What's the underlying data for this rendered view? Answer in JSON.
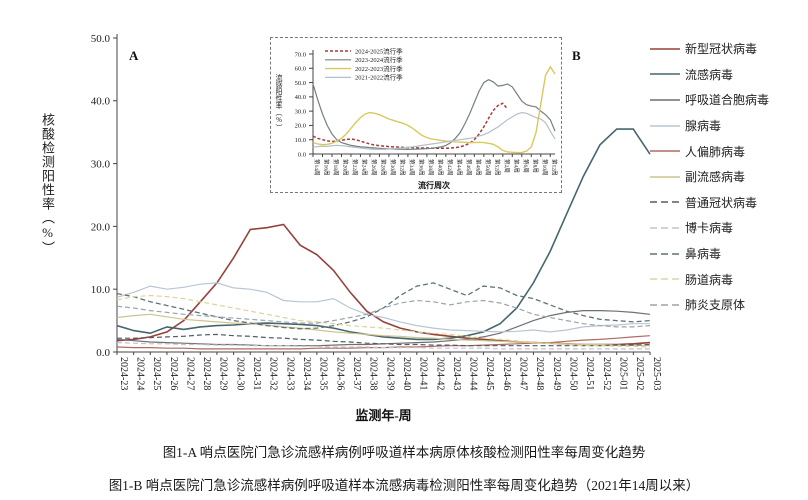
{
  "page": {
    "background": "#ffffff"
  },
  "panel_labels": {
    "a": "A",
    "b": "B"
  },
  "captions": {
    "line1": "图1-A  哨点医院门急诊流感样病例呼吸道样本病原体核酸检测阳性率每周变化趋势",
    "line2": "图1-B 哨点医院门急诊流感样病例呼吸道样本流感病毒检测阳性率每周变化趋势（2021年14周以来）"
  },
  "chart_data": [
    {
      "id": "main",
      "type": "line",
      "panel": "A",
      "xlabel": "监测年-周",
      "ylabel": "核酸检测阳性率（%）",
      "ylim": [
        0,
        50
      ],
      "yticks": [
        0,
        10,
        20,
        30,
        40,
        50
      ],
      "grid": false,
      "legend_position": "right",
      "categories": [
        "2024-23",
        "2024-24",
        "2024-25",
        "2024-26",
        "2024-27",
        "2024-28",
        "2024-29",
        "2024-30",
        "2024-31",
        "2024-32",
        "2024-33",
        "2024-34",
        "2024-35",
        "2024-36",
        "2024-37",
        "2024-38",
        "2024-39",
        "2024-40",
        "2024-41",
        "2024-42",
        "2024-43",
        "2024-44",
        "2024-45",
        "2024-46",
        "2024-47",
        "2024-48",
        "2024-49",
        "2024-50",
        "2024-51",
        "2024-52",
        "2025-01",
        "2025-02",
        "2025-03"
      ],
      "series": [
        {
          "name": "新型冠状病毒",
          "color": "#96413c",
          "dashed": false,
          "width": 1.6,
          "values": [
            1.8,
            2.0,
            2.4,
            3.2,
            5.0,
            8.0,
            11.0,
            15.0,
            19.5,
            19.8,
            20.3,
            17.0,
            15.5,
            13.0,
            9.5,
            6.5,
            4.8,
            3.8,
            3.2,
            2.8,
            2.5,
            2.2,
            2.0,
            1.8,
            1.6,
            1.5,
            1.4,
            1.3,
            1.2,
            1.2,
            1.2,
            1.3,
            1.5
          ]
        },
        {
          "name": "流感病毒",
          "color": "#46666e",
          "dashed": false,
          "width": 1.6,
          "values": [
            4.2,
            3.4,
            3.0,
            4.0,
            3.6,
            4.0,
            4.2,
            4.3,
            4.5,
            4.6,
            4.5,
            4.4,
            4.2,
            3.8,
            3.2,
            2.8,
            2.4,
            2.2,
            2.0,
            2.0,
            2.2,
            2.6,
            3.2,
            4.5,
            7.0,
            11.0,
            16.0,
            22.0,
            28.0,
            33.0,
            35.5,
            35.5,
            31.5
          ]
        },
        {
          "name": "呼吸道合胞病毒",
          "color": "#6f6f6f",
          "dashed": false,
          "width": 1.2,
          "values": [
            2.0,
            1.8,
            1.6,
            1.5,
            1.4,
            1.3,
            1.2,
            1.2,
            1.1,
            1.0,
            1.0,
            1.0,
            1.0,
            1.1,
            1.2,
            1.2,
            1.3,
            1.4,
            1.5,
            1.6,
            1.8,
            2.0,
            2.4,
            3.0,
            4.0,
            5.0,
            5.8,
            6.3,
            6.6,
            6.6,
            6.5,
            6.3,
            6.0
          ]
        },
        {
          "name": "腺病毒",
          "color": "#b9c6d2",
          "dashed": false,
          "width": 1.2,
          "values": [
            8.7,
            9.5,
            10.5,
            10.0,
            10.3,
            10.8,
            11.0,
            10.2,
            10.0,
            9.5,
            8.2,
            8.0,
            8.0,
            8.5,
            7.0,
            6.0,
            5.5,
            4.8,
            4.2,
            3.8,
            3.5,
            3.4,
            3.3,
            3.2,
            3.3,
            3.5,
            3.2,
            3.5,
            4.0,
            4.2,
            4.3,
            4.5,
            4.5
          ]
        },
        {
          "name": "人偏肺病毒",
          "color": "#b06a60",
          "dashed": false,
          "width": 1.2,
          "values": [
            0.8,
            0.7,
            0.7,
            0.6,
            0.6,
            0.5,
            0.5,
            0.5,
            0.5,
            0.5,
            0.5,
            0.5,
            0.6,
            0.6,
            0.6,
            0.7,
            0.7,
            0.8,
            0.8,
            0.9,
            1.0,
            1.0,
            1.1,
            1.2,
            1.3,
            1.4,
            1.5,
            1.7,
            1.9,
            2.0,
            2.2,
            2.4,
            2.6
          ]
        },
        {
          "name": "副流感病毒",
          "color": "#cfc48e",
          "dashed": false,
          "width": 1.2,
          "values": [
            5.5,
            5.8,
            6.0,
            5.6,
            5.2,
            5.0,
            4.8,
            4.6,
            4.5,
            4.3,
            4.0,
            3.8,
            3.5,
            3.2,
            3.0,
            2.8,
            2.6,
            2.5,
            2.3,
            2.2,
            2.0,
            1.9,
            1.8,
            1.7,
            1.6,
            1.5,
            1.4,
            1.3,
            1.2,
            1.2,
            1.1,
            1.1,
            1.0
          ]
        },
        {
          "name": "普通冠状病毒",
          "color": "#4f5d66",
          "dashed": true,
          "width": 1.2,
          "values": [
            2.2,
            2.2,
            2.3,
            2.4,
            2.5,
            2.7,
            2.8,
            2.6,
            2.5,
            2.3,
            2.2,
            2.0,
            1.9,
            1.7,
            1.6,
            1.4,
            1.3,
            1.2,
            1.2,
            1.1,
            1.1,
            1.0,
            1.0,
            1.0,
            1.0,
            1.0,
            1.0,
            1.0,
            1.0,
            1.0,
            1.1,
            1.1,
            1.2
          ]
        },
        {
          "name": "博卡病毒",
          "color": "#c6c2ce",
          "dashed": true,
          "width": 1.2,
          "values": [
            1.5,
            1.4,
            1.3,
            1.3,
            1.2,
            1.2,
            1.1,
            1.1,
            1.0,
            1.0,
            1.0,
            0.9,
            0.9,
            0.8,
            0.8,
            0.8,
            0.7,
            0.7,
            0.7,
            0.6,
            0.6,
            0.6,
            0.6,
            0.5,
            0.5,
            0.5,
            0.5,
            0.5,
            0.5,
            0.5,
            0.5,
            0.5,
            0.5
          ]
        },
        {
          "name": "鼻病毒",
          "color": "#5f7274",
          "dashed": true,
          "width": 1.3,
          "values": [
            9.3,
            8.8,
            8.0,
            7.4,
            6.8,
            6.2,
            5.6,
            5.0,
            4.6,
            4.2,
            3.9,
            3.7,
            3.8,
            4.2,
            4.8,
            5.6,
            7.0,
            9.0,
            10.5,
            11.0,
            10.0,
            9.0,
            10.5,
            10.2,
            9.0,
            8.5,
            7.5,
            6.5,
            5.8,
            5.2,
            5.0,
            4.8,
            5.0
          ]
        },
        {
          "name": "肠道病毒",
          "color": "#ddd49c",
          "dashed": true,
          "width": 1.2,
          "values": [
            8.3,
            8.8,
            9.0,
            8.8,
            8.5,
            8.0,
            7.5,
            7.0,
            6.5,
            6.0,
            5.5,
            5.0,
            4.8,
            4.5,
            4.2,
            4.0,
            3.8,
            3.5,
            3.2,
            3.0,
            2.8,
            2.5,
            2.2,
            2.0,
            1.8,
            1.5,
            1.3,
            1.2,
            1.0,
            1.0,
            0.9,
            0.9,
            0.8
          ]
        },
        {
          "name": "肺炎支原体",
          "color": "#9aa4ac",
          "dashed": true,
          "width": 1.2,
          "values": [
            7.3,
            7.0,
            6.6,
            6.3,
            6.0,
            5.8,
            5.6,
            5.4,
            5.2,
            5.0,
            4.8,
            4.6,
            4.6,
            5.0,
            5.5,
            6.0,
            7.0,
            7.8,
            8.2,
            8.0,
            7.5,
            8.0,
            8.2,
            7.8,
            7.0,
            6.0,
            5.5,
            5.0,
            4.5,
            4.2,
            4.0,
            4.0,
            4.2
          ]
        }
      ]
    },
    {
      "id": "inset",
      "type": "line",
      "panel": "B",
      "xlabel": "流行周次",
      "ylabel": "流感阳性率（%）",
      "ylim": [
        0,
        70
      ],
      "yticks": [
        0,
        10,
        20,
        30,
        40,
        50,
        60,
        70
      ],
      "grid": false,
      "tick_every": 2,
      "legend_position": "top-left-inside",
      "categories": [
        "第14周",
        "第15周",
        "第16周",
        "第17周",
        "第18周",
        "第19周",
        "第20周",
        "第21周",
        "第22周",
        "第23周",
        "第24周",
        "第25周",
        "第26周",
        "第27周",
        "第28周",
        "第29周",
        "第30周",
        "第31周",
        "第32周",
        "第33周",
        "第34周",
        "第35周",
        "第36周",
        "第37周",
        "第38周",
        "第39周",
        "第40周",
        "第41周",
        "第42周",
        "第43周",
        "第44周",
        "第45周",
        "第46周",
        "第47周",
        "第48周",
        "第49周",
        "第50周",
        "第51周",
        "第52周",
        "第1周",
        "第2周",
        "第3周",
        "第4周",
        "第5周",
        "第6周",
        "第7周",
        "第8周",
        "第9周",
        "第10周",
        "第11周",
        "第12周",
        "第13周"
      ],
      "series": [
        {
          "name": "2024-2025流行季",
          "color": "#a33b38",
          "dashed": true,
          "width": 1.5,
          "values": [
            12.5,
            11.0,
            10.0,
            9.2,
            8.8,
            9.0,
            9.5,
            10.2,
            10.5,
            10.0,
            9.0,
            8.0,
            7.0,
            6.2,
            5.8,
            5.5,
            5.2,
            5.0,
            4.8,
            4.6,
            4.5,
            4.4,
            4.3,
            4.2,
            4.2,
            4.1,
            4.0,
            4.0,
            4.0,
            4.2,
            4.5,
            5.0,
            6.0,
            7.5,
            10.0,
            14.0,
            19.0,
            25.0,
            30.5,
            34.0,
            35.5,
            31.5,
            null,
            null,
            null,
            null,
            null,
            null,
            null,
            null,
            null,
            null
          ]
        },
        {
          "name": "2023-2024流行季",
          "color": "#75807f",
          "dashed": false,
          "width": 1.2,
          "values": [
            49,
            38,
            28,
            20,
            14,
            10,
            8,
            7,
            6,
            5.5,
            5,
            4.8,
            4.5,
            4.2,
            4,
            3.8,
            3.6,
            3.5,
            3.4,
            3.3,
            3.2,
            3.3,
            3.5,
            3.6,
            3.8,
            4,
            4.5,
            5,
            6,
            8,
            11,
            15,
            21,
            28,
            36,
            44,
            50,
            52,
            50.5,
            47.5,
            48,
            49,
            47,
            42,
            37,
            34.5,
            33.5,
            33,
            30,
            27.5,
            24,
            16
          ]
        },
        {
          "name": "2022-2023流行季",
          "color": "#d9c95c",
          "dashed": false,
          "width": 1.4,
          "values": [
            8,
            7,
            6.5,
            6.8,
            7.5,
            9,
            11,
            14,
            18,
            22,
            25.5,
            28,
            29,
            28.5,
            27.5,
            26,
            24.5,
            23.5,
            22.5,
            21.5,
            20,
            18,
            15.5,
            13,
            11.5,
            10.5,
            10,
            9.5,
            9,
            8.8,
            8.5,
            8.3,
            8.2,
            8,
            8,
            8.2,
            8,
            7.5,
            6.8,
            5,
            2.5,
            1.5,
            1.2,
            1,
            1,
            2,
            5,
            15,
            35,
            55,
            61,
            56
          ]
        },
        {
          "name": "2021-2022流行季",
          "color": "#b3bfc9",
          "dashed": false,
          "width": 1.2,
          "values": [
            5,
            5.2,
            5.5,
            5.3,
            5.8,
            6,
            5.8,
            5.5,
            5,
            4.6,
            4.2,
            3.8,
            3.5,
            3.3,
            3.2,
            3.3,
            3.5,
            3.8,
            4,
            4.3,
            4.6,
            5,
            5.5,
            6,
            6.5,
            7,
            7.5,
            8,
            8.5,
            9,
            9.5,
            10,
            10.5,
            11,
            11.5,
            12.5,
            13.5,
            15,
            17,
            19,
            21.5,
            24,
            26,
            28,
            29,
            28.5,
            27,
            25.5,
            24.5,
            22,
            16,
            10.5
          ]
        }
      ]
    }
  ]
}
